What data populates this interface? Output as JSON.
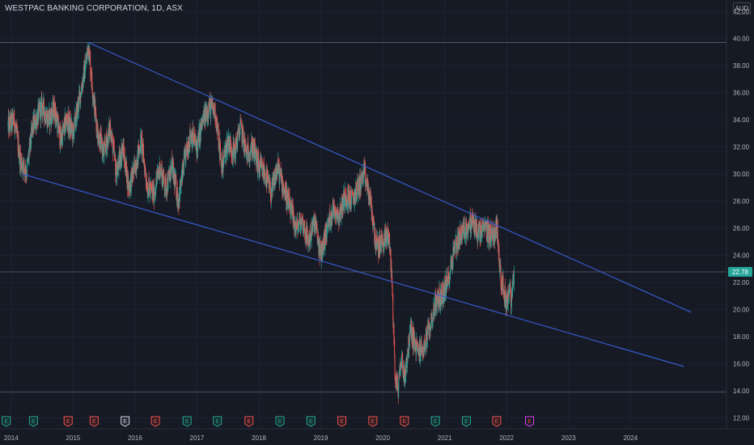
{
  "header": {
    "title": "WESTPAC BANKING CORPORATION, 1D, ASX",
    "currency": "AUD"
  },
  "colors": {
    "background": "#161a25",
    "grid": "#1f2330",
    "up": "#26a69a",
    "down": "#ef5350",
    "trendline": "#3a5fd9",
    "last_price_bg": "#26a69a",
    "hline": "#5b6270"
  },
  "price_label": "22.78",
  "chart_data": {
    "type": "candlestick",
    "title": "WESTPAC BANKING CORPORATION, 1D, ASX",
    "ylim": [
      11.2,
      42.6
    ],
    "y_ticks": [
      "12.00",
      "14.00",
      "16.00",
      "18.00",
      "20.00",
      "22.00",
      "24.00",
      "26.00",
      "28.00",
      "30.00",
      "32.00",
      "34.00",
      "36.00",
      "38.00",
      "40.00",
      "42.00"
    ],
    "x_ticks": [
      "2014",
      "2015",
      "2016",
      "2017",
      "2018",
      "2019",
      "2020",
      "2021",
      "2022",
      "2023",
      "2024"
    ],
    "last_price": 22.78,
    "horizontal_lines": [
      39.7,
      22.78,
      13.9
    ],
    "price_path": [
      [
        2013.95,
        33.5
      ],
      [
        2014.05,
        34.0
      ],
      [
        2014.15,
        31.0
      ],
      [
        2014.25,
        30.2
      ],
      [
        2014.35,
        33.5
      ],
      [
        2014.5,
        35.0
      ],
      [
        2014.6,
        34.0
      ],
      [
        2014.7,
        34.8
      ],
      [
        2014.8,
        32.5
      ],
      [
        2014.9,
        34.0
      ],
      [
        2015.0,
        33.0
      ],
      [
        2015.1,
        35.5
      ],
      [
        2015.2,
        38.0
      ],
      [
        2015.25,
        39.5
      ],
      [
        2015.32,
        36.0
      ],
      [
        2015.4,
        33.0
      ],
      [
        2015.5,
        31.5
      ],
      [
        2015.6,
        33.5
      ],
      [
        2015.7,
        30.0
      ],
      [
        2015.8,
        32.0
      ],
      [
        2015.9,
        29.0
      ],
      [
        2016.0,
        30.5
      ],
      [
        2016.1,
        32.5
      ],
      [
        2016.2,
        29.0
      ],
      [
        2016.3,
        28.5
      ],
      [
        2016.4,
        30.5
      ],
      [
        2016.5,
        29.0
      ],
      [
        2016.6,
        30.5
      ],
      [
        2016.7,
        28.0
      ],
      [
        2016.8,
        31.0
      ],
      [
        2016.9,
        33.0
      ],
      [
        2017.0,
        32.0
      ],
      [
        2017.1,
        34.0
      ],
      [
        2017.2,
        35.0
      ],
      [
        2017.3,
        34.5
      ],
      [
        2017.4,
        30.5
      ],
      [
        2017.5,
        32.5
      ],
      [
        2017.6,
        31.5
      ],
      [
        2017.7,
        33.5
      ],
      [
        2017.8,
        31.5
      ],
      [
        2017.9,
        32.0
      ],
      [
        2018.0,
        30.5
      ],
      [
        2018.1,
        30.0
      ],
      [
        2018.2,
        28.5
      ],
      [
        2018.3,
        30.5
      ],
      [
        2018.4,
        29.0
      ],
      [
        2018.5,
        27.5
      ],
      [
        2018.6,
        26.0
      ],
      [
        2018.7,
        26.5
      ],
      [
        2018.8,
        25.0
      ],
      [
        2018.9,
        26.5
      ],
      [
        2019.0,
        24.0
      ],
      [
        2019.1,
        26.0
      ],
      [
        2019.2,
        27.5
      ],
      [
        2019.3,
        27.0
      ],
      [
        2019.4,
        28.5
      ],
      [
        2019.5,
        28.0
      ],
      [
        2019.6,
        29.0
      ],
      [
        2019.7,
        30.0
      ],
      [
        2019.8,
        28.0
      ],
      [
        2019.9,
        24.5
      ],
      [
        2020.0,
        25.0
      ],
      [
        2020.1,
        25.5
      ],
      [
        2020.15,
        22.0
      ],
      [
        2020.2,
        15.0
      ],
      [
        2020.25,
        14.2
      ],
      [
        2020.3,
        16.5
      ],
      [
        2020.35,
        15.0
      ],
      [
        2020.45,
        18.5
      ],
      [
        2020.55,
        17.0
      ],
      [
        2020.65,
        17.0
      ],
      [
        2020.75,
        18.5
      ],
      [
        2020.85,
        20.5
      ],
      [
        2020.95,
        21.0
      ],
      [
        2021.05,
        22.0
      ],
      [
        2021.15,
        24.5
      ],
      [
        2021.25,
        25.5
      ],
      [
        2021.35,
        26.0
      ],
      [
        2021.45,
        26.5
      ],
      [
        2021.55,
        25.5
      ],
      [
        2021.65,
        26.0
      ],
      [
        2021.75,
        25.5
      ],
      [
        2021.85,
        26.0
      ],
      [
        2021.9,
        22.5
      ],
      [
        2021.95,
        21.5
      ],
      [
        2022.0,
        20.5
      ],
      [
        2022.05,
        21.5
      ],
      [
        2022.08,
        20.5
      ],
      [
        2022.12,
        22.78
      ]
    ],
    "trendlines": [
      {
        "from": [
          2015.25,
          39.7
        ],
        "to": [
          2024.98,
          19.8
        ]
      },
      {
        "from": [
          2014.18,
          30.0
        ],
        "to": [
          2024.86,
          15.8
        ]
      }
    ],
    "events": [
      {
        "x": 2013.92,
        "label": "E",
        "kind": "earnings-green"
      },
      {
        "x": 2014.36,
        "label": "E",
        "kind": "earnings-green"
      },
      {
        "x": 2014.92,
        "label": "E",
        "kind": "earnings-red"
      },
      {
        "x": 2015.34,
        "label": "E",
        "kind": "earnings-red"
      },
      {
        "x": 2015.84,
        "label": "E",
        "kind": "earnings-white"
      },
      {
        "x": 2016.33,
        "label": "E",
        "kind": "earnings-red"
      },
      {
        "x": 2016.84,
        "label": "E",
        "kind": "earnings-green"
      },
      {
        "x": 2017.33,
        "label": "E",
        "kind": "earnings-green"
      },
      {
        "x": 2017.84,
        "label": "E",
        "kind": "earnings-red"
      },
      {
        "x": 2018.34,
        "label": "E",
        "kind": "earnings-green"
      },
      {
        "x": 2018.84,
        "label": "E",
        "kind": "earnings-green"
      },
      {
        "x": 2019.34,
        "label": "E",
        "kind": "earnings-red"
      },
      {
        "x": 2019.84,
        "label": "E",
        "kind": "earnings-red"
      },
      {
        "x": 2020.35,
        "label": "E",
        "kind": "earnings-red"
      },
      {
        "x": 2020.85,
        "label": "E",
        "kind": "earnings-green"
      },
      {
        "x": 2021.35,
        "label": "E",
        "kind": "earnings-green"
      },
      {
        "x": 2021.84,
        "label": "E",
        "kind": "earnings-red"
      },
      {
        "x": 2022.37,
        "label": "E",
        "kind": "earnings-upcoming"
      }
    ]
  }
}
